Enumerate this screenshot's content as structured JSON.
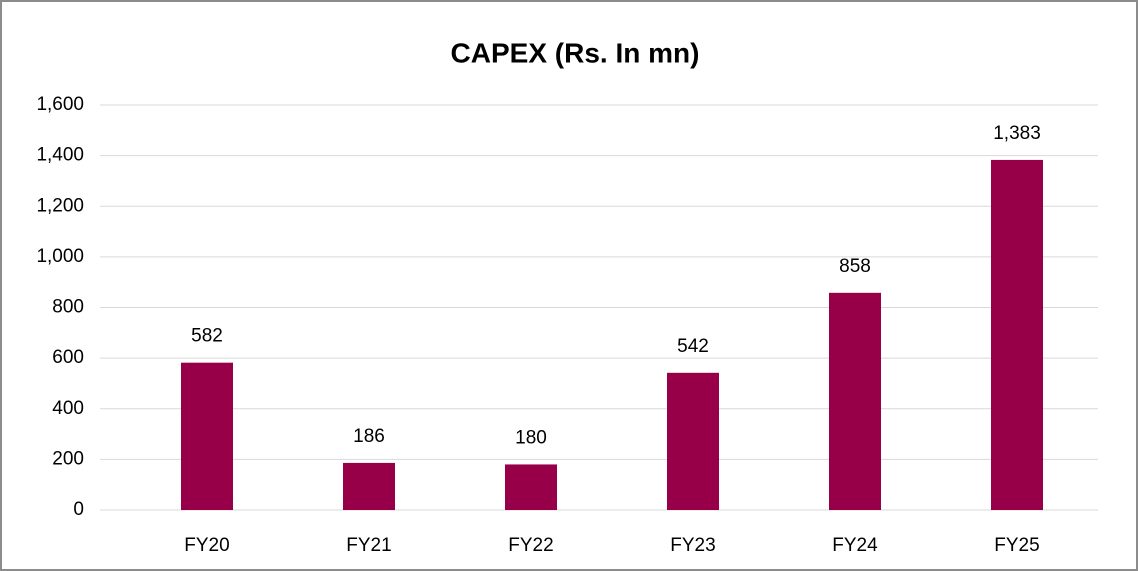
{
  "chart_data": {
    "type": "bar",
    "title": "CAPEX (Rs. In mn)",
    "categories": [
      "FY20",
      "FY21",
      "FY22",
      "FY23",
      "FY24",
      "FY25"
    ],
    "values": [
      582,
      186,
      180,
      542,
      858,
      1383
    ],
    "value_labels": [
      "582",
      "186",
      "180",
      "542",
      "858",
      "1,383"
    ],
    "color": "#970048",
    "ylim": [
      0,
      1600
    ],
    "yticks": [
      0,
      200,
      400,
      600,
      800,
      {
        "value": 1000,
        "label": "1,000"
      },
      {
        "value": 1200,
        "label": "1,200"
      },
      {
        "value": 1400,
        "label": "1,400"
      },
      {
        "value": 1600,
        "label": "1,600"
      }
    ],
    "grid": true
  }
}
